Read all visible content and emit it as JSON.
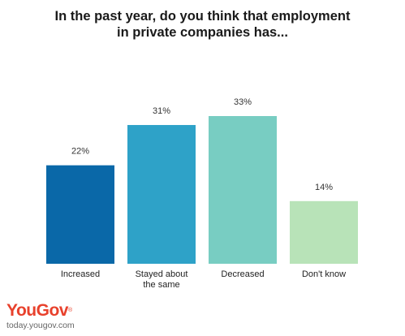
{
  "chart_data": {
    "type": "bar",
    "title_lines": [
      "In the past year, do you think that employment",
      "in private companies has..."
    ],
    "categories": [
      {
        "lines": [
          "Increased"
        ]
      },
      {
        "lines": [
          "Stayed about",
          "the same"
        ]
      },
      {
        "lines": [
          "Decreased"
        ]
      },
      {
        "lines": [
          "Don't know"
        ]
      }
    ],
    "values": [
      22,
      31,
      33,
      14
    ],
    "value_labels": [
      "22%",
      "31%",
      "33%",
      "14%"
    ],
    "colors": [
      "#0a68a8",
      "#2ea2c8",
      "#78cdc2",
      "#b8e3b8"
    ],
    "ylim": [
      0,
      33
    ],
    "grid": false,
    "legend": "none"
  },
  "brand": {
    "logo": "YouGov",
    "url": "today.yougov.com"
  }
}
